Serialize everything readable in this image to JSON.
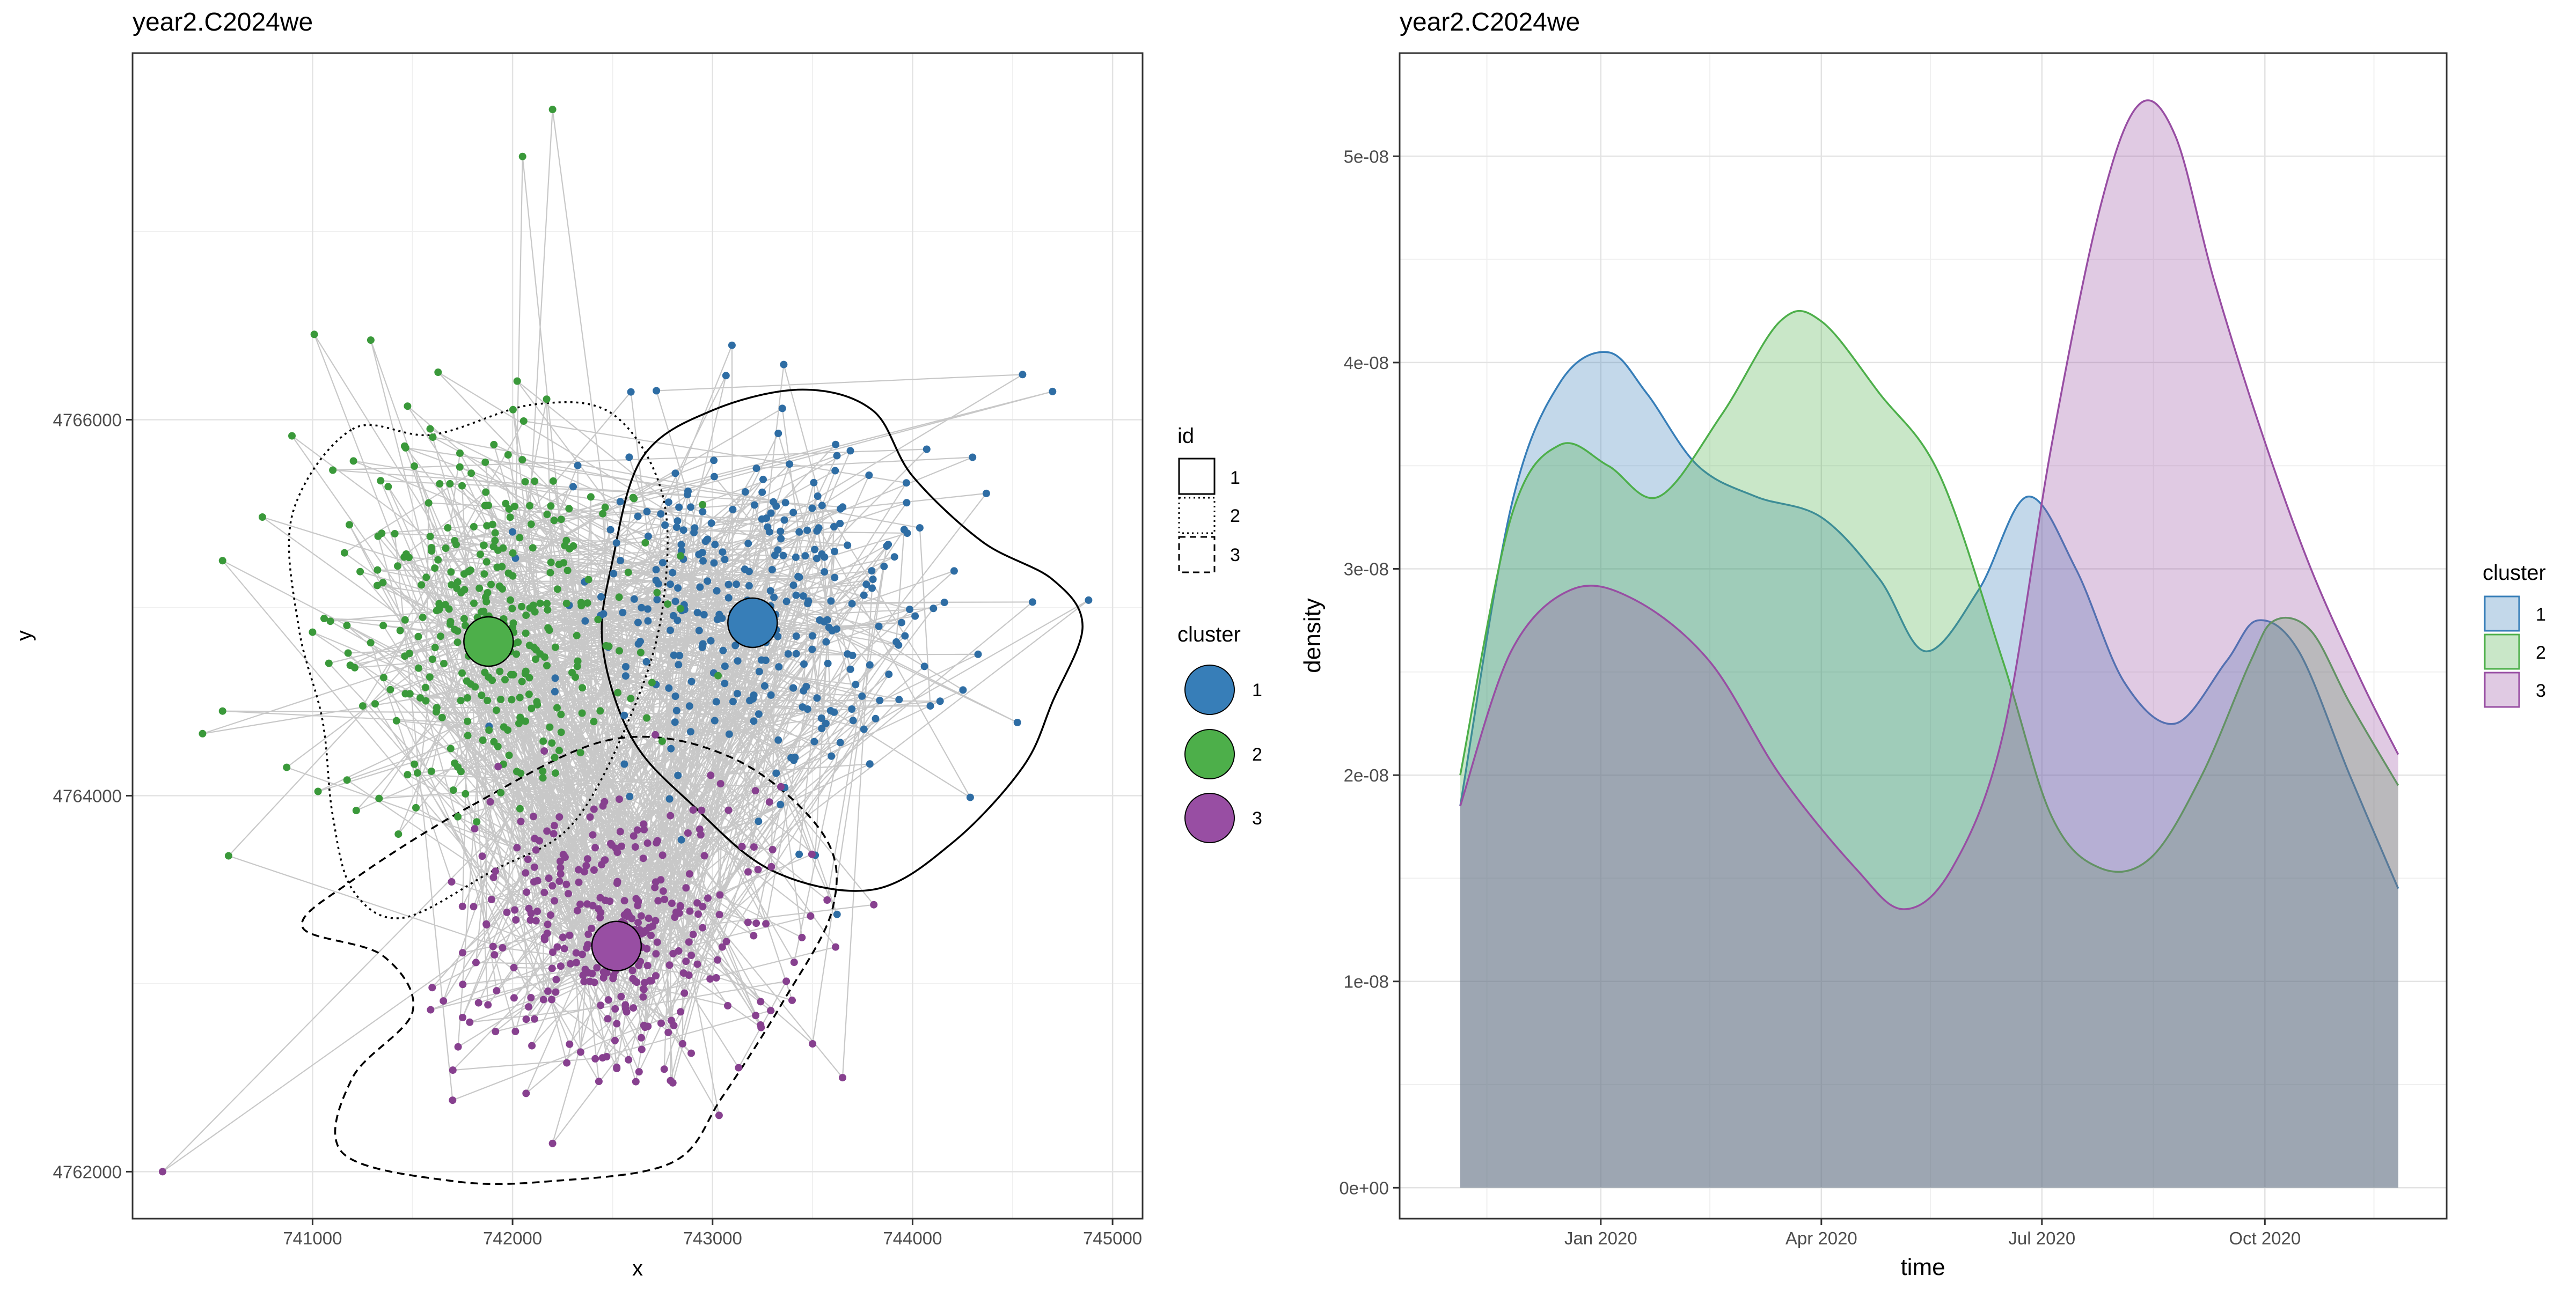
{
  "chart_data": [
    {
      "type": "scatter",
      "title": "year2.C2024we",
      "xlabel": "x",
      "ylabel": "y",
      "xlim": [
        740100,
        745150
      ],
      "ylim": [
        4761750,
        4767950
      ],
      "x_ticks": [
        {
          "value": 741000,
          "label": "741000"
        },
        {
          "value": 742000,
          "label": "742000"
        },
        {
          "value": 743000,
          "label": "743000"
        },
        {
          "value": 744000,
          "label": "744000"
        },
        {
          "value": 745000,
          "label": "745000"
        }
      ],
      "y_ticks": [
        {
          "value": 4762000,
          "label": "4762000"
        },
        {
          "value": 4764000,
          "label": "4764000"
        },
        {
          "value": 4766000,
          "label": "4766000"
        }
      ],
      "grid": true,
      "legend_id": {
        "title": "id",
        "items": [
          {
            "label": "1",
            "dash": "solid"
          },
          {
            "label": "2",
            "dash": "dotted"
          },
          {
            "label": "3",
            "dash": "dashed"
          }
        ]
      },
      "legend_cluster": {
        "title": "cluster",
        "items": [
          {
            "label": "1",
            "color": "#377EB8"
          },
          {
            "label": "2",
            "color": "#4DAF4A"
          },
          {
            "label": "3",
            "color": "#984EA3"
          }
        ]
      },
      "centroids": [
        {
          "cluster": "1",
          "x": 743200,
          "y": 4764920,
          "color": "#377EB8"
        },
        {
          "cluster": "2",
          "x": 741880,
          "y": 4764820,
          "color": "#4DAF4A"
        },
        {
          "cluster": "3",
          "x": 742520,
          "y": 4763200,
          "color": "#984EA3"
        }
      ],
      "clusters": [
        {
          "name": "1",
          "color": "#2E6DA4",
          "cx": 743200,
          "cy": 4765000,
          "sx": 450,
          "sy": 450,
          "n": 320,
          "outliers": [
            [
              744700,
              4766150
            ],
            [
              744550,
              4766240
            ],
            [
              744880,
              4765040
            ],
            [
              744600,
              4765030
            ],
            [
              744300,
              4765800
            ]
          ]
        },
        {
          "name": "2",
          "color": "#3A993A",
          "cx": 741900,
          "cy": 4764900,
          "sx": 380,
          "sy": 480,
          "n": 330,
          "outliers": [
            [
              740550,
              4765250
            ],
            [
              740450,
              4764330
            ],
            [
              740550,
              4764450
            ],
            [
              740580,
              4763680
            ],
            [
              742200,
              4767650
            ],
            [
              742050,
              4767400
            ]
          ]
        },
        {
          "name": "3",
          "color": "#87408F",
          "cx": 742550,
          "cy": 4763300,
          "sx": 420,
          "sy": 400,
          "n": 330,
          "outliers": [
            [
              740250,
              4762000
            ],
            [
              742200,
              4762150
            ],
            [
              743650,
              4762500
            ],
            [
              743500,
              4762680
            ],
            [
              741700,
              4762380
            ]
          ]
        }
      ],
      "contours": [
        {
          "id": "1",
          "dash": "solid",
          "points": [
            [
              742500,
              4765250
            ],
            [
              742650,
              4765800
            ],
            [
              743000,
              4766050
            ],
            [
              743450,
              4766160
            ],
            [
              743800,
              4766050
            ],
            [
              744000,
              4765700
            ],
            [
              744350,
              4765350
            ],
            [
              744700,
              4765150
            ],
            [
              744850,
              4764900
            ],
            [
              744700,
              4764500
            ],
            [
              744550,
              4764150
            ],
            [
              744200,
              4763750
            ],
            [
              743800,
              4763500
            ],
            [
              743300,
              4763600
            ],
            [
              742900,
              4763950
            ],
            [
              742600,
              4764300
            ],
            [
              742450,
              4764800
            ]
          ]
        },
        {
          "id": "2",
          "dash": "dotted",
          "points": [
            [
              741200,
              4765950
            ],
            [
              741600,
              4765920
            ],
            [
              742100,
              4766080
            ],
            [
              742500,
              4766030
            ],
            [
              742750,
              4765600
            ],
            [
              742750,
              4765000
            ],
            [
              742600,
              4764450
            ],
            [
              742300,
              4763850
            ],
            [
              741900,
              4763600
            ],
            [
              741450,
              4763350
            ],
            [
              741200,
              4763500
            ],
            [
              741100,
              4763900
            ],
            [
              741050,
              4764400
            ],
            [
              740930,
              4764900
            ],
            [
              740900,
              4765500
            ]
          ]
        },
        {
          "id": "3",
          "dash": "dashed",
          "points": [
            [
              741800,
              4763950
            ],
            [
              742500,
              4764300
            ],
            [
              743100,
              4764200
            ],
            [
              743550,
              4763800
            ],
            [
              743600,
              4763400
            ],
            [
              743350,
              4762900
            ],
            [
              743050,
              4762400
            ],
            [
              742800,
              4762050
            ],
            [
              742200,
              4761950
            ],
            [
              741700,
              4761950
            ],
            [
              741150,
              4762100
            ],
            [
              741200,
              4762500
            ],
            [
              741500,
              4762850
            ],
            [
              741350,
              4763150
            ],
            [
              740950,
              4763300
            ],
            [
              741200,
              4763550
            ]
          ]
        }
      ]
    },
    {
      "type": "area",
      "title": "year2.C2024we",
      "xlabel": "time",
      "ylabel": "density",
      "xlim": [
        "2019-10-10",
        "2020-12-15"
      ],
      "ylim": [
        -1.5e-09,
        5.5e-08
      ],
      "x_ticks": [
        {
          "value": "2020-01-01",
          "label": "Jan 2020"
        },
        {
          "value": "2020-04-01",
          "label": "Apr 2020"
        },
        {
          "value": "2020-07-01",
          "label": "Jul 2020"
        },
        {
          "value": "2020-10-01",
          "label": "Oct 2020"
        }
      ],
      "y_ticks": [
        {
          "value": 0,
          "label": "0e+00"
        },
        {
          "value": 1e-08,
          "label": "1e-08"
        },
        {
          "value": 2e-08,
          "label": "2e-08"
        },
        {
          "value": 3e-08,
          "label": "3e-08"
        },
        {
          "value": 4e-08,
          "label": "4e-08"
        },
        {
          "value": 5e-08,
          "label": "5e-08"
        }
      ],
      "grid": true,
      "legend": {
        "title": "cluster",
        "position": "right"
      },
      "series": [
        {
          "name": "1",
          "color": "#377EB8",
          "x": [
            "2019-11-04",
            "2019-11-25",
            "2019-12-15",
            "2020-01-04",
            "2020-01-20",
            "2020-02-10",
            "2020-03-05",
            "2020-04-01",
            "2020-04-25",
            "2020-05-14",
            "2020-06-05",
            "2020-06-25",
            "2020-07-15",
            "2020-08-04",
            "2020-08-25",
            "2020-09-15",
            "2020-09-28",
            "2020-10-15",
            "2020-11-05",
            "2020-11-25"
          ],
          "values": [
            1.85e-08,
            3.3e-08,
            3.9e-08,
            4.05e-08,
            3.85e-08,
            3.5e-08,
            3.35e-08,
            3.25e-08,
            2.95e-08,
            2.6e-08,
            2.9e-08,
            3.35e-08,
            3e-08,
            2.45e-08,
            2.25e-08,
            2.55e-08,
            2.75e-08,
            2.6e-08,
            2e-08,
            1.45e-08
          ]
        },
        {
          "name": "2",
          "color": "#4DAF4A",
          "x": [
            "2019-11-04",
            "2019-11-25",
            "2019-12-15",
            "2020-01-04",
            "2020-01-25",
            "2020-02-20",
            "2020-03-15",
            "2020-04-01",
            "2020-04-25",
            "2020-05-20",
            "2020-06-15",
            "2020-07-05",
            "2020-07-25",
            "2020-08-15",
            "2020-09-05",
            "2020-09-25",
            "2020-10-05",
            "2020-10-20",
            "2020-11-05",
            "2020-11-25"
          ],
          "values": [
            2e-08,
            3.25e-08,
            3.6e-08,
            3.5e-08,
            3.35e-08,
            3.75e-08,
            4.2e-08,
            4.2e-08,
            3.85e-08,
            3.45e-08,
            2.55e-08,
            1.8e-08,
            1.55e-08,
            1.6e-08,
            2e-08,
            2.55e-08,
            2.75e-08,
            2.7e-08,
            2.35e-08,
            1.95e-08
          ]
        },
        {
          "name": "3",
          "color": "#984EA3",
          "x": [
            "2019-11-04",
            "2019-11-25",
            "2019-12-20",
            "2020-01-15",
            "2020-02-15",
            "2020-03-15",
            "2020-04-15",
            "2020-05-05",
            "2020-05-25",
            "2020-06-15",
            "2020-07-05",
            "2020-07-25",
            "2020-08-10",
            "2020-08-25",
            "2020-09-10",
            "2020-09-30",
            "2020-10-20",
            "2020-11-10",
            "2020-11-25"
          ],
          "values": [
            1.85e-08,
            2.6e-08,
            2.9e-08,
            2.85e-08,
            2.55e-08,
            2e-08,
            1.55e-08,
            1.35e-08,
            1.55e-08,
            2.2e-08,
            3.6e-08,
            4.75e-08,
            5.25e-08,
            5.1e-08,
            4.4e-08,
            3.65e-08,
            3e-08,
            2.45e-08,
            2.1e-08
          ]
        }
      ]
    }
  ]
}
